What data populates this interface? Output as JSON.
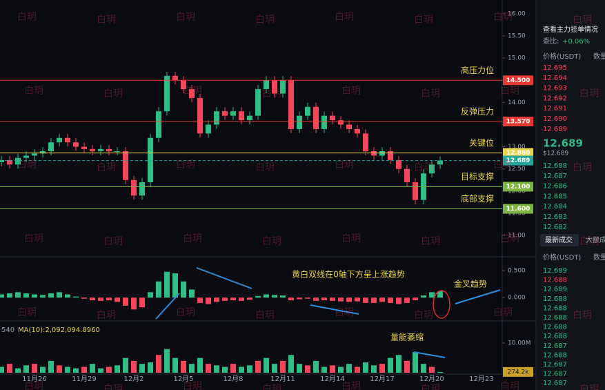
{
  "chart_data": [
    {
      "type": "candlestick",
      "categories": [
        null,
        null,
        null,
        null,
        "11月26",
        null,
        null,
        null,
        null,
        null,
        "11月29",
        null,
        null,
        null,
        null,
        null,
        "12月2",
        null,
        null,
        null,
        null,
        null,
        "12月5",
        null,
        null,
        null,
        null,
        null,
        "12月8",
        null,
        null,
        null,
        null,
        null,
        "12月11",
        null,
        null,
        null,
        null,
        null,
        "12月14",
        null,
        null,
        null,
        null,
        null,
        "12月17",
        null,
        null,
        null,
        null,
        null,
        "12月20",
        null,
        null,
        null,
        null,
        null,
        "12月23",
        null
      ],
      "values": [
        12.7,
        12.6,
        12.75,
        12.8,
        12.85,
        12.9,
        13.1,
        13.2,
        13.1,
        13.0,
        12.95,
        12.9,
        12.95,
        12.9,
        12.9,
        12.25,
        11.9,
        12.2,
        13.2,
        13.8,
        14.6,
        14.5,
        14.3,
        14.1,
        13.3,
        13.5,
        13.8,
        13.7,
        13.8,
        13.6,
        13.7,
        14.3,
        14.5,
        14.2,
        14.5,
        13.4,
        13.7,
        13.9,
        13.4,
        13.7,
        13.6,
        13.5,
        13.4,
        13.3,
        12.9,
        12.8,
        12.9,
        12.7,
        12.5,
        12.2,
        11.8,
        12.4,
        12.6,
        12.689,
        null,
        null,
        null,
        null,
        null,
        null
      ],
      "ylim": [
        10.55,
        16.31
      ],
      "yticks": [
        {
          "value": 16,
          "label": "16.00"
        },
        {
          "value": 15.5,
          "label": "15.50"
        },
        {
          "value": 15,
          "label": "15.00"
        },
        {
          "value": 14.5,
          "label": "14.50"
        },
        {
          "value": 14,
          "label": "14.00"
        },
        {
          "value": 13.5,
          "label": "13.50"
        },
        {
          "value": 13,
          "label": "13.00"
        },
        {
          "value": 12.5,
          "label": "12.50"
        },
        {
          "value": 12,
          "label": "12.00"
        },
        {
          "value": 11.5,
          "label": "11.50"
        },
        {
          "value": 11,
          "label": "11.00"
        }
      ],
      "levels": [
        {
          "value": 14.5,
          "label": "14.500",
          "note": "高压力位",
          "color": "#e53935"
        },
        {
          "value": 13.57,
          "label": "13.570",
          "note": "反弹压力",
          "color": "#e53935"
        },
        {
          "value": 12.86,
          "label": "12.860",
          "note": "关键位",
          "color": "#e8d44d"
        },
        {
          "value": 12.689,
          "label": "12.689",
          "color": "#26a69a"
        },
        {
          "value": 12.1,
          "label": "12.100",
          "note": "目标支撑",
          "color": "#7cb342"
        },
        {
          "value": 11.6,
          "label": "11.600",
          "note": "底部支撑",
          "color": "#7cb342"
        }
      ]
    },
    {
      "type": "bar",
      "values": [
        0.06,
        0.08,
        0.1,
        0.08,
        0.06,
        0.05,
        0.08,
        0.1,
        0.06,
        0.02,
        -0.02,
        -0.05,
        -0.06,
        -0.05,
        -0.08,
        -0.15,
        -0.22,
        -0.18,
        0.1,
        0.3,
        0.48,
        0.45,
        0.3,
        0.15,
        -0.1,
        -0.12,
        -0.08,
        -0.06,
        -0.05,
        -0.06,
        -0.04,
        0.03,
        0.06,
        0.05,
        0.04,
        -0.05,
        -0.03,
        -0.02,
        -0.06,
        -0.05,
        -0.06,
        -0.07,
        -0.08,
        -0.07,
        -0.1,
        -0.1,
        -0.08,
        -0.1,
        -0.12,
        -0.1,
        -0.05,
        0.04,
        0.1,
        0.12,
        null,
        null,
        null,
        null,
        null,
        null
      ],
      "ylim": [
        -0.37,
        0.72
      ],
      "yticks": [
        {
          "value": 0.5,
          "label": "0.500"
        },
        {
          "value": 0,
          "label": "0.000"
        }
      ],
      "annotations": [
        "黄白双线在0轴下方呈上涨趋势",
        "金叉趋势"
      ]
    },
    {
      "type": "bar",
      "values": [
        2,
        3,
        1.5,
        2.5,
        3,
        2,
        4,
        2.5,
        2,
        1.5,
        2,
        3,
        1.5,
        2,
        2.5,
        5,
        4,
        3,
        3.5,
        6,
        8,
        5,
        4,
        3,
        5,
        3,
        2.5,
        2,
        3,
        2,
        2.5,
        4,
        5,
        3,
        4,
        6,
        3,
        2.5,
        4,
        2,
        2.5,
        2,
        3,
        2,
        3.5,
        2.5,
        3,
        5,
        6,
        4,
        7,
        3,
        2,
        0.2742,
        null,
        null,
        null,
        null,
        null,
        null
      ],
      "value_labels": [
        null,
        null,
        null,
        null,
        null,
        null,
        null,
        null,
        null,
        null,
        null,
        null,
        null,
        null,
        null,
        null,
        null,
        null,
        null,
        null,
        null,
        null,
        null,
        null,
        null,
        null,
        null,
        null,
        null,
        null,
        null,
        null,
        null,
        null,
        null,
        null,
        null,
        null,
        null,
        null,
        null,
        null,
        null,
        null,
        null,
        null,
        null,
        null,
        null,
        null,
        null,
        null,
        null,
        "274.2k",
        null,
        null,
        null,
        null,
        null,
        null
      ],
      "ylim": [
        0,
        16.3
      ],
      "yticks": [
        {
          "value": 10,
          "label": "10.00M"
        }
      ],
      "prefix": "540",
      "ma_label": "MA(10):2,092,094.8960",
      "annotations": [
        "量能萎缩"
      ]
    }
  ],
  "watermark": "白玥",
  "order_book": {
    "title": "查看主力挂单情况",
    "ratio_label": "委比:",
    "ratio": "+0.06%",
    "columns": [
      "价格(USDT)",
      "数量"
    ],
    "asks": [
      "12.695",
      "12.694",
      "12.693",
      "12.692",
      "12.691",
      "12.690",
      "12.689"
    ],
    "last": "12.689",
    "last_usd": "$12.689",
    "bids": [
      "12.688",
      "12.687",
      "12.686",
      "12.685",
      "12.684",
      "12.683",
      "12.682"
    ]
  },
  "trades": {
    "tabs": [
      "最新成交",
      "大额成"
    ],
    "columns": [
      "价格(USDT)",
      "数量"
    ],
    "prices": [
      "12.689",
      "12.688",
      "12.689",
      "12.688",
      "12.688",
      "12.688",
      "12.688",
      "12.688",
      "12.687",
      "12.688",
      "12.687",
      "12.687",
      "12.687"
    ]
  }
}
